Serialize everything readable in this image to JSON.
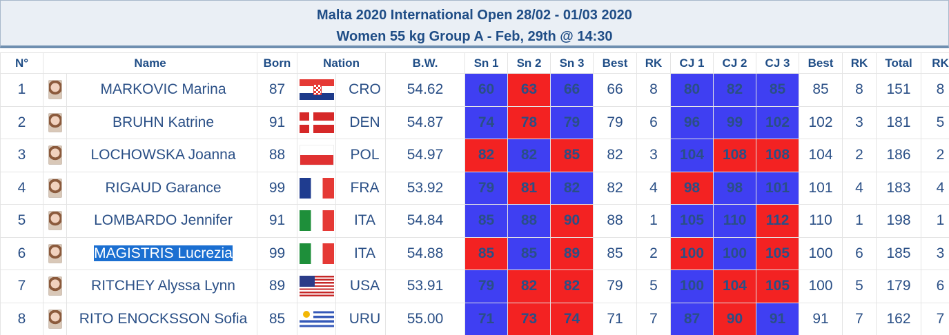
{
  "header": {
    "title": "Malta 2020 International Open 28/02 - 01/03 2020",
    "subtitle": "Women 55 kg Group A - Feb, 29th @ 14:30"
  },
  "colors": {
    "good_lift": "#3f3ff2",
    "no_lift": "#f32222",
    "header_text": "#1f4d86"
  },
  "columns": [
    "N°",
    "Name",
    "Born",
    "Nation",
    "B.W.",
    "Sn 1",
    "Sn 2",
    "Sn 3",
    "Best",
    "RK",
    "CJ 1",
    "CJ 2",
    "CJ 3",
    "Best",
    "RK",
    "Total",
    "RK"
  ],
  "rows": [
    {
      "no": "1",
      "name": "MARKOVIC Marina",
      "born": "87",
      "flag": "flag-cro",
      "nation": "CRO",
      "bw": "54.62",
      "sn": [
        {
          "v": "60",
          "r": "good"
        },
        {
          "v": "63",
          "r": "bad"
        },
        {
          "v": "66",
          "r": "good"
        }
      ],
      "sn_best": "66",
      "sn_rk": "8",
      "cj": [
        {
          "v": "80",
          "r": "good"
        },
        {
          "v": "82",
          "r": "good"
        },
        {
          "v": "85",
          "r": "good"
        }
      ],
      "cj_best": "85",
      "cj_rk": "8",
      "total": "151",
      "total_rk": "8"
    },
    {
      "no": "2",
      "name": "BRUHN Katrine",
      "born": "91",
      "flag": "flag-den",
      "nation": "DEN",
      "bw": "54.87",
      "sn": [
        {
          "v": "74",
          "r": "good"
        },
        {
          "v": "78",
          "r": "bad"
        },
        {
          "v": "79",
          "r": "good"
        }
      ],
      "sn_best": "79",
      "sn_rk": "6",
      "cj": [
        {
          "v": "96",
          "r": "good"
        },
        {
          "v": "99",
          "r": "good"
        },
        {
          "v": "102",
          "r": "good"
        }
      ],
      "cj_best": "102",
      "cj_rk": "3",
      "total": "181",
      "total_rk": "5"
    },
    {
      "no": "3",
      "name": "LOCHOWSKA Joanna",
      "born": "88",
      "flag": "flag-pol",
      "nation": "POL",
      "bw": "54.97",
      "sn": [
        {
          "v": "82",
          "r": "bad"
        },
        {
          "v": "82",
          "r": "good"
        },
        {
          "v": "85",
          "r": "bad"
        }
      ],
      "sn_best": "82",
      "sn_rk": "3",
      "cj": [
        {
          "v": "104",
          "r": "good"
        },
        {
          "v": "108",
          "r": "bad"
        },
        {
          "v": "108",
          "r": "bad"
        }
      ],
      "cj_best": "104",
      "cj_rk": "2",
      "total": "186",
      "total_rk": "2"
    },
    {
      "no": "4",
      "name": "RIGAUD Garance",
      "born": "99",
      "flag": "flag-fra",
      "nation": "FRA",
      "bw": "53.92",
      "sn": [
        {
          "v": "79",
          "r": "good"
        },
        {
          "v": "81",
          "r": "bad"
        },
        {
          "v": "82",
          "r": "good"
        }
      ],
      "sn_best": "82",
      "sn_rk": "4",
      "cj": [
        {
          "v": "98",
          "r": "bad"
        },
        {
          "v": "98",
          "r": "good"
        },
        {
          "v": "101",
          "r": "good"
        }
      ],
      "cj_best": "101",
      "cj_rk": "4",
      "total": "183",
      "total_rk": "4"
    },
    {
      "no": "5",
      "name": "LOMBARDO Jennifer",
      "born": "91",
      "flag": "flag-ita",
      "nation": "ITA",
      "bw": "54.84",
      "sn": [
        {
          "v": "85",
          "r": "good"
        },
        {
          "v": "88",
          "r": "good"
        },
        {
          "v": "90",
          "r": "bad"
        }
      ],
      "sn_best": "88",
      "sn_rk": "1",
      "cj": [
        {
          "v": "105",
          "r": "good"
        },
        {
          "v": "110",
          "r": "good"
        },
        {
          "v": "112",
          "r": "bad"
        }
      ],
      "cj_best": "110",
      "cj_rk": "1",
      "total": "198",
      "total_rk": "1"
    },
    {
      "no": "6",
      "name": "MAGISTRIS Lucrezia",
      "born": "99",
      "flag": "flag-ita",
      "nation": "ITA",
      "bw": "54.88",
      "selected": true,
      "sn": [
        {
          "v": "85",
          "r": "bad"
        },
        {
          "v": "85",
          "r": "good"
        },
        {
          "v": "89",
          "r": "bad"
        }
      ],
      "sn_best": "85",
      "sn_rk": "2",
      "cj": [
        {
          "v": "100",
          "r": "bad"
        },
        {
          "v": "100",
          "r": "good"
        },
        {
          "v": "105",
          "r": "bad"
        }
      ],
      "cj_best": "100",
      "cj_rk": "6",
      "total": "185",
      "total_rk": "3"
    },
    {
      "no": "7",
      "name": "RITCHEY Alyssa Lynn",
      "born": "89",
      "flag": "flag-usa",
      "nation": "USA",
      "bw": "53.91",
      "sn": [
        {
          "v": "79",
          "r": "good"
        },
        {
          "v": "82",
          "r": "bad"
        },
        {
          "v": "82",
          "r": "bad"
        }
      ],
      "sn_best": "79",
      "sn_rk": "5",
      "cj": [
        {
          "v": "100",
          "r": "good"
        },
        {
          "v": "104",
          "r": "bad"
        },
        {
          "v": "105",
          "r": "bad"
        }
      ],
      "cj_best": "100",
      "cj_rk": "5",
      "total": "179",
      "total_rk": "6"
    },
    {
      "no": "8",
      "name": "RITO ENOCKSSON Sofia",
      "born": "85",
      "flag": "flag-uru",
      "nation": "URU",
      "bw": "55.00",
      "sn": [
        {
          "v": "71",
          "r": "good"
        },
        {
          "v": "73",
          "r": "bad"
        },
        {
          "v": "74",
          "r": "bad"
        }
      ],
      "sn_best": "71",
      "sn_rk": "7",
      "cj": [
        {
          "v": "87",
          "r": "good"
        },
        {
          "v": "90",
          "r": "bad"
        },
        {
          "v": "91",
          "r": "good"
        }
      ],
      "cj_best": "91",
      "cj_rk": "7",
      "total": "162",
      "total_rk": "7"
    }
  ]
}
